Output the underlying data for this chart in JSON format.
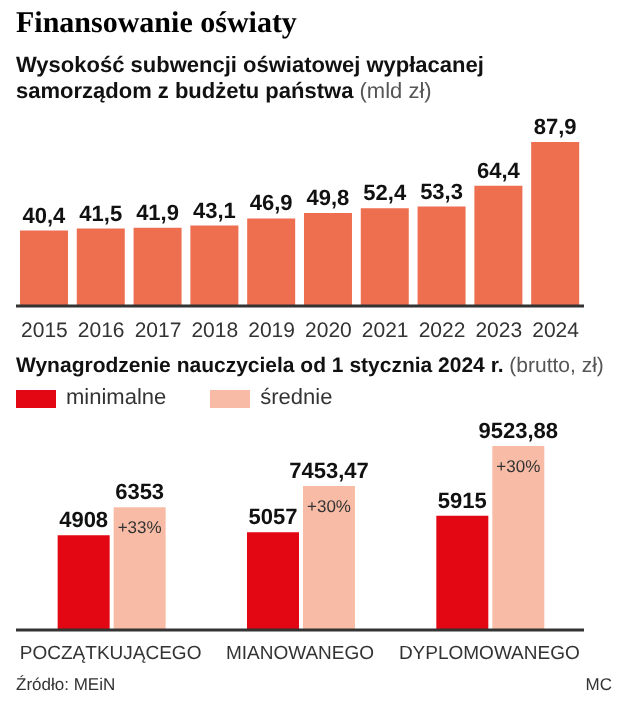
{
  "chart_data": [
    {
      "type": "bar",
      "title": "Finansowanie oświaty",
      "subtitle": "Wysokość subwencji oświatowej wypłacanej samorządom z budżetu państwa (mld zł)",
      "categories": [
        "2015",
        "2016",
        "2017",
        "2018",
        "2019",
        "2020",
        "2021",
        "2022",
        "2023",
        "2024"
      ],
      "values": [
        40.4,
        41.5,
        41.9,
        43.1,
        46.9,
        49.8,
        52.4,
        53.3,
        64.4,
        87.9
      ],
      "value_labels": [
        "40,4",
        "41,5",
        "41,9",
        "43,1",
        "46,9",
        "49,8",
        "52,4",
        "53,3",
        "64,4",
        "87,9"
      ],
      "color": "#ee6e50",
      "grid": false,
      "legend": false
    },
    {
      "type": "bar",
      "title": "Wynagrodzenie nauczyciela od 1 stycznia 2024 r. (brutto, zł)",
      "categories": [
        "POCZĄTKUJĄCEGO",
        "MIANOWANEGO",
        "DYPLOMOWANEGO"
      ],
      "series": [
        {
          "name": "minimalne",
          "color": "#e30613",
          "values": [
            4908,
            5057,
            5915
          ],
          "value_labels": [
            "4908",
            "5057",
            "5915"
          ]
        },
        {
          "name": "średnie",
          "color": "#f8bca6",
          "values": [
            6353,
            7453.47,
            9523.88
          ],
          "value_labels": [
            "6353",
            "7453,47",
            "9523,88"
          ]
        }
      ],
      "legend": "top left",
      "grid": false,
      "annotations": [
        {
          "text": "+33%",
          "x": "POCZĄTKUJĄCEGO",
          "y": 6353
        },
        {
          "text": "+30%",
          "x": "MIANOWANEGO",
          "y": 7453.47
        },
        {
          "text": "+30%",
          "x": "DYPLOMOWANEGO",
          "y": 9523.88
        },
        "Źródło: MEiN",
        "MC"
      ]
    }
  ]
}
